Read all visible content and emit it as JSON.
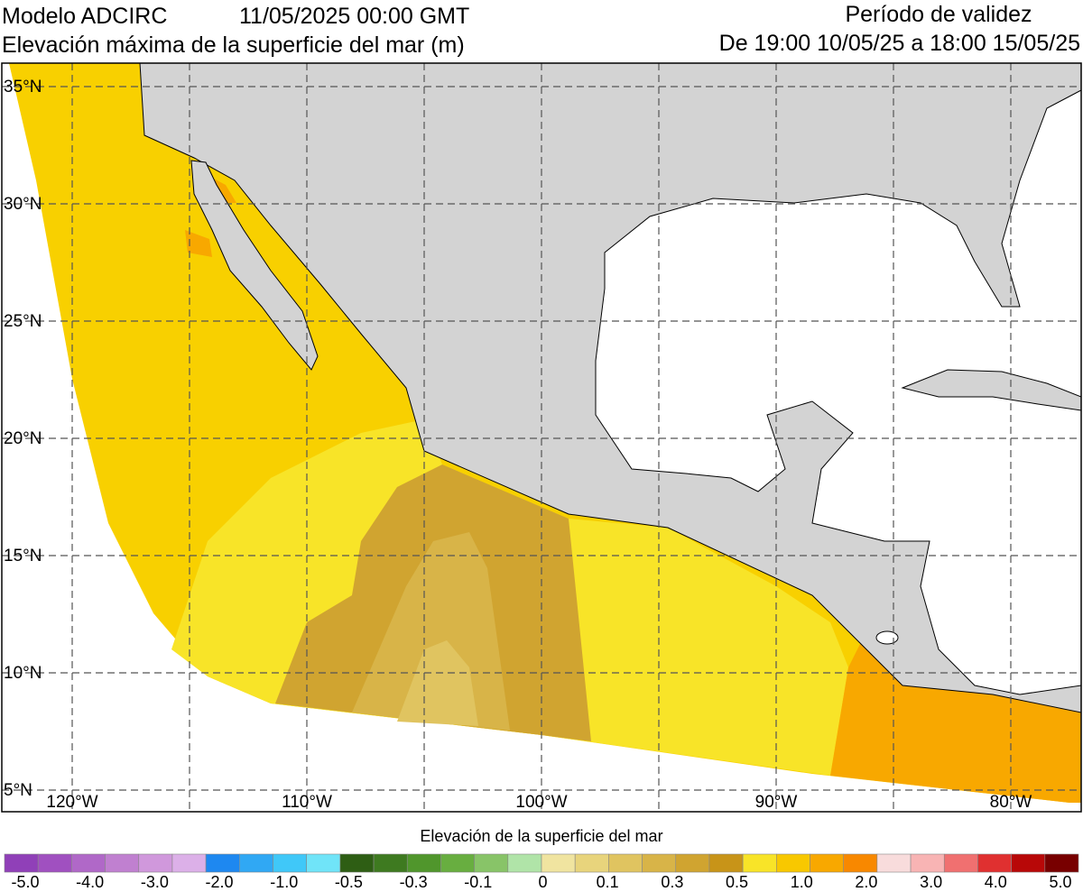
{
  "header": {
    "model": "Modelo ADCIRC",
    "date": "11/05/2025 00:00 GMT",
    "subtitle": "Elevación máxima de la superficie del mar (m)",
    "validity_title": "Período de validez",
    "validity_range": "De 19:00 10/05/25 a 18:00 15/05/25"
  },
  "map": {
    "lat_ticks": [
      {
        "value": 35,
        "label": "35°N"
      },
      {
        "value": 30,
        "label": "30°N"
      },
      {
        "value": 25,
        "label": "25°N"
      },
      {
        "value": 20,
        "label": "20°N"
      },
      {
        "value": 15,
        "label": "15°N"
      },
      {
        "value": 10,
        "label": "10°N"
      },
      {
        "value": 5,
        "label": "5°N"
      }
    ],
    "lon_ticks": [
      {
        "value": -120,
        "label": "120°W"
      },
      {
        "value": -110,
        "label": "110°W"
      },
      {
        "value": -100,
        "label": "100°W"
      },
      {
        "value": -90,
        "label": "90°W"
      },
      {
        "value": -80,
        "label": "80°W"
      }
    ],
    "lon_grid": [
      -120,
      -115,
      -110,
      -105,
      -100,
      -95,
      -90,
      -85,
      -80
    ]
  },
  "colorbar": {
    "title": "Elevación de la superficie del mar",
    "colors": [
      "#9040b8",
      "#a050c0",
      "#b068c8",
      "#c080d0",
      "#d098dc",
      "#dcb0e8",
      "#1e88f0",
      "#30a8f4",
      "#40c8f8",
      "#70e4f8",
      "#2e5e14",
      "#3e7a20",
      "#50962c",
      "#68ae40",
      "#88c468",
      "#b0e4a8",
      "#f0e4a0",
      "#e8d47c",
      "#e0c460",
      "#d8b448",
      "#d0a430",
      "#c89418",
      "#f8e428",
      "#f8c800",
      "#f8a800",
      "#f88800",
      "#f8dcdc",
      "#f8b4b4",
      "#f07070",
      "#e03030",
      "#b80808",
      "#780000"
    ],
    "labels": [
      {
        "value": -5,
        "label": "-5.0"
      },
      {
        "value": -4,
        "label": "-4.0"
      },
      {
        "value": -3,
        "label": "-3.0"
      },
      {
        "value": -2,
        "label": "-2.0"
      },
      {
        "value": -1,
        "label": "-1.0"
      },
      -0.5,
      -0.3,
      -0.1,
      0,
      0.1,
      0.3,
      0.5,
      {
        "value": 1,
        "label": "1.0"
      },
      {
        "value": 2,
        "label": "2.0"
      },
      {
        "value": 3,
        "label": "3.0"
      },
      {
        "value": 4,
        "label": "4.0"
      },
      {
        "value": 5,
        "label": "5.0"
      }
    ]
  }
}
